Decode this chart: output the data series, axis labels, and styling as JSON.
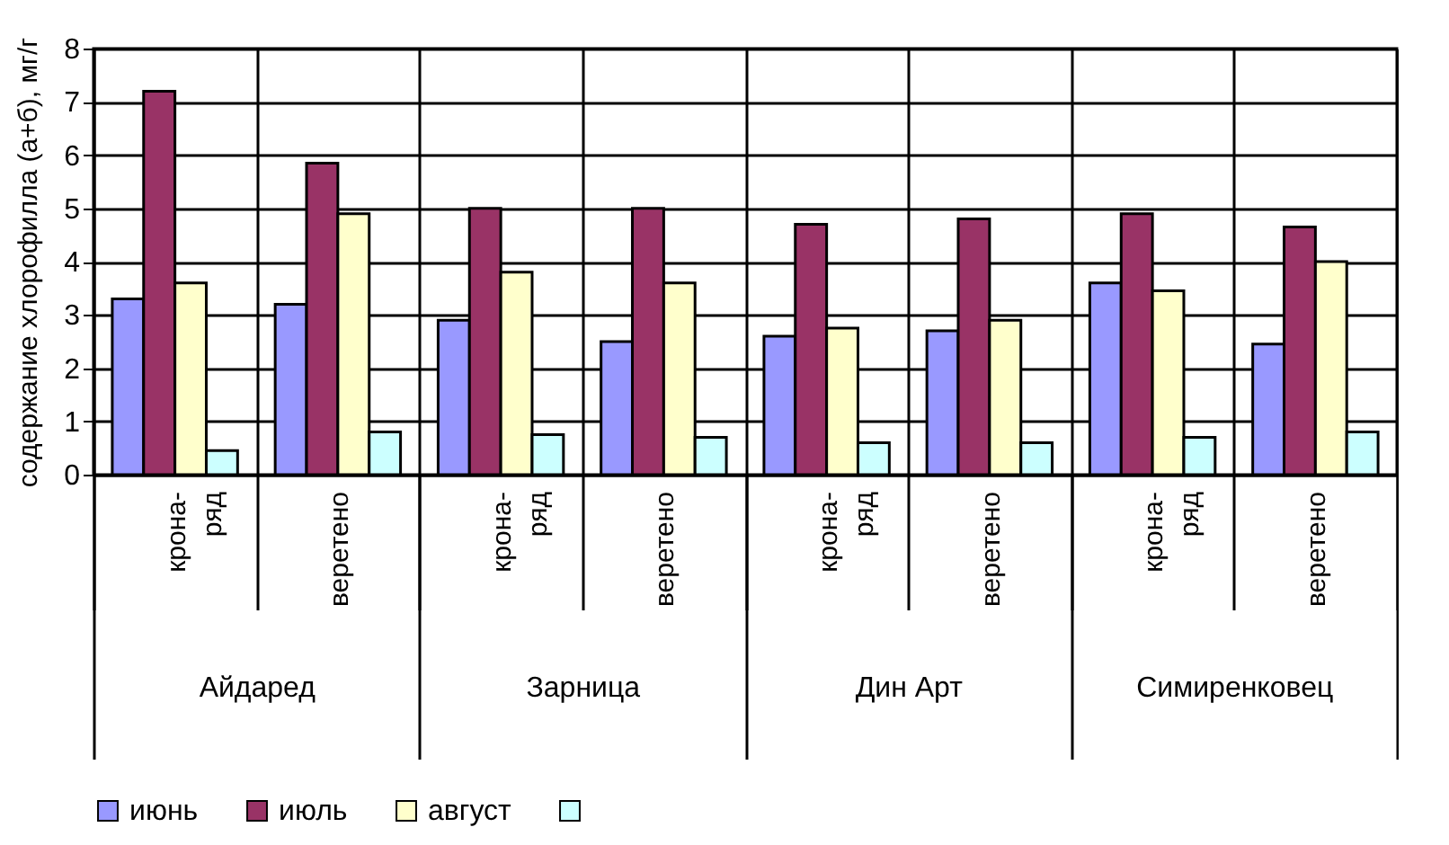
{
  "chart_data": {
    "type": "bar",
    "ylabel": "содержание хлорофилла (а+б), мг/г",
    "categories": [
      "крона-\nряд",
      "веретено",
      "крона-\nряд",
      "веретено",
      "крона-\nряд",
      "веретено",
      "крона-\nряд",
      "веретено"
    ],
    "annotations": [
      "Айдаред",
      "Зарница",
      "Дин Арт",
      "Симиренковец"
    ],
    "series": [
      {
        "name": "июнь",
        "color": "#9999ff",
        "values": [
          3.3,
          3.2,
          2.9,
          2.5,
          2.6,
          2.7,
          3.6,
          2.45
        ]
      },
      {
        "name": "июль",
        "color": "#993366",
        "values": [
          7.2,
          5.85,
          5.0,
          5.0,
          4.7,
          4.8,
          4.9,
          4.65
        ]
      },
      {
        "name": "август",
        "color": "#ffffcc",
        "values": [
          3.6,
          4.9,
          3.8,
          3.6,
          2.75,
          2.9,
          3.45,
          4.0
        ]
      },
      {
        "color": "#ccffff",
        "values": [
          0.45,
          0.8,
          0.75,
          0.7,
          0.6,
          0.6,
          0.7,
          0.8
        ]
      }
    ],
    "ylim": [
      0,
      8
    ],
    "yticks": [
      0,
      1,
      2,
      3,
      4,
      5,
      6,
      7,
      8
    ],
    "grid": true,
    "legend": "bottom"
  }
}
